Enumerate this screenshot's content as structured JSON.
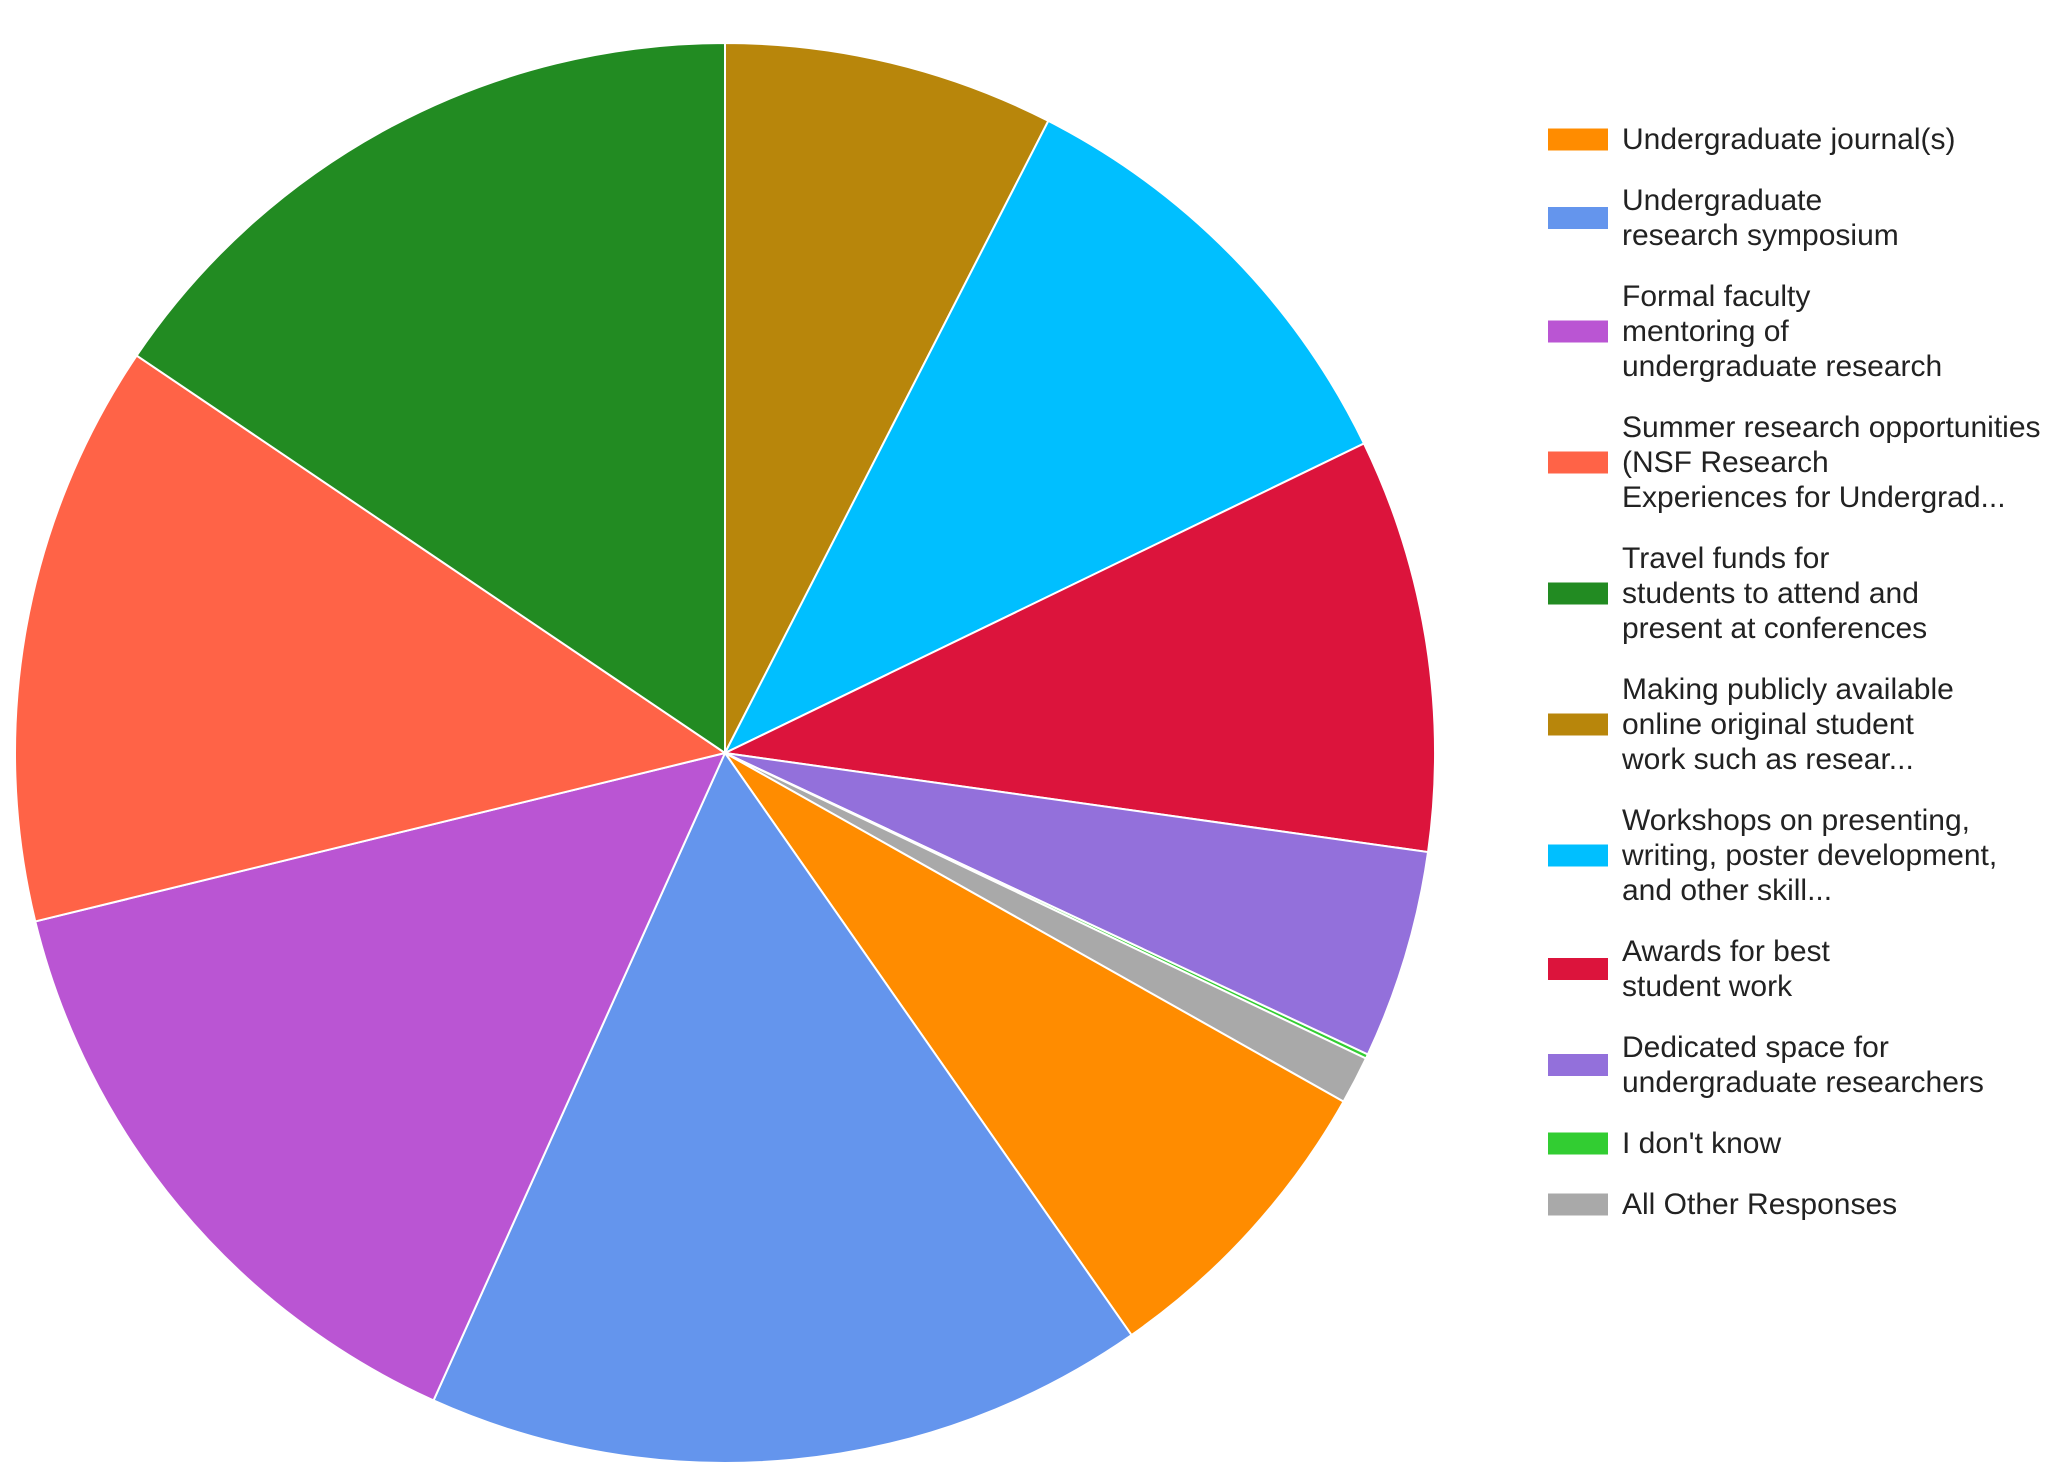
{
  "chart_data": {
    "type": "pie",
    "title": "",
    "legend_position": "right",
    "slices": [
      {
        "label": "Undergraduate journal(s)",
        "lines": [
          "Undergraduate journal(s)"
        ],
        "value": 7.2,
        "color": "#ff8c00"
      },
      {
        "label": "Undergraduate research symposium",
        "lines": [
          "Undergraduate",
          "research symposium"
        ],
        "value": 16.6,
        "color": "#6495ed"
      },
      {
        "label": "Formal faculty mentoring of undergraduate research",
        "lines": [
          "Formal faculty",
          "mentoring of",
          "undergraduate research"
        ],
        "value": 14.6,
        "color": "#ba55d3"
      },
      {
        "label": "Summer research opportunities (NSF Research Experiences for Undergrad...",
        "lines": [
          "Summer research opportunities",
          "(NSF Research",
          "Experiences for Undergrad..."
        ],
        "value": 13.4,
        "color": "#ff6347"
      },
      {
        "label": "Travel funds for students to attend and present at conferences",
        "lines": [
          "Travel funds for",
          "students to attend and",
          "present at conferences"
        ],
        "value": 15.7,
        "color": "#228b22"
      },
      {
        "label": "Making publicly available online original student work such as resear...",
        "lines": [
          "Making publicly available",
          "online original student",
          "work such as resear..."
        ],
        "value": 7.6,
        "color": "#b8860b"
      },
      {
        "label": "Workshops on presenting, writing, poster development, and other skill...",
        "lines": [
          "Workshops on presenting,",
          "writing, poster development,",
          "and other skill..."
        ],
        "value": 10.4,
        "color": "#00bfff"
      },
      {
        "label": "Awards for best student work",
        "lines": [
          "Awards for best",
          "student work"
        ],
        "value": 9.5,
        "color": "#dc143c"
      },
      {
        "label": "Dedicated space for undergraduate researchers",
        "lines": [
          "Dedicated space for",
          "undergraduate researchers"
        ],
        "value": 4.8,
        "color": "#9370db"
      },
      {
        "label": "I don't know",
        "lines": [
          "I don't know"
        ],
        "value": 0.1,
        "color": "#32cd32"
      },
      {
        "label": "All Other Responses",
        "lines": [
          "All Other Responses"
        ],
        "value": 1.1,
        "color": "#a9a9a9"
      }
    ],
    "draw_order": [
      5,
      6,
      7,
      8,
      9,
      10,
      0,
      1,
      2,
      3,
      4
    ]
  }
}
